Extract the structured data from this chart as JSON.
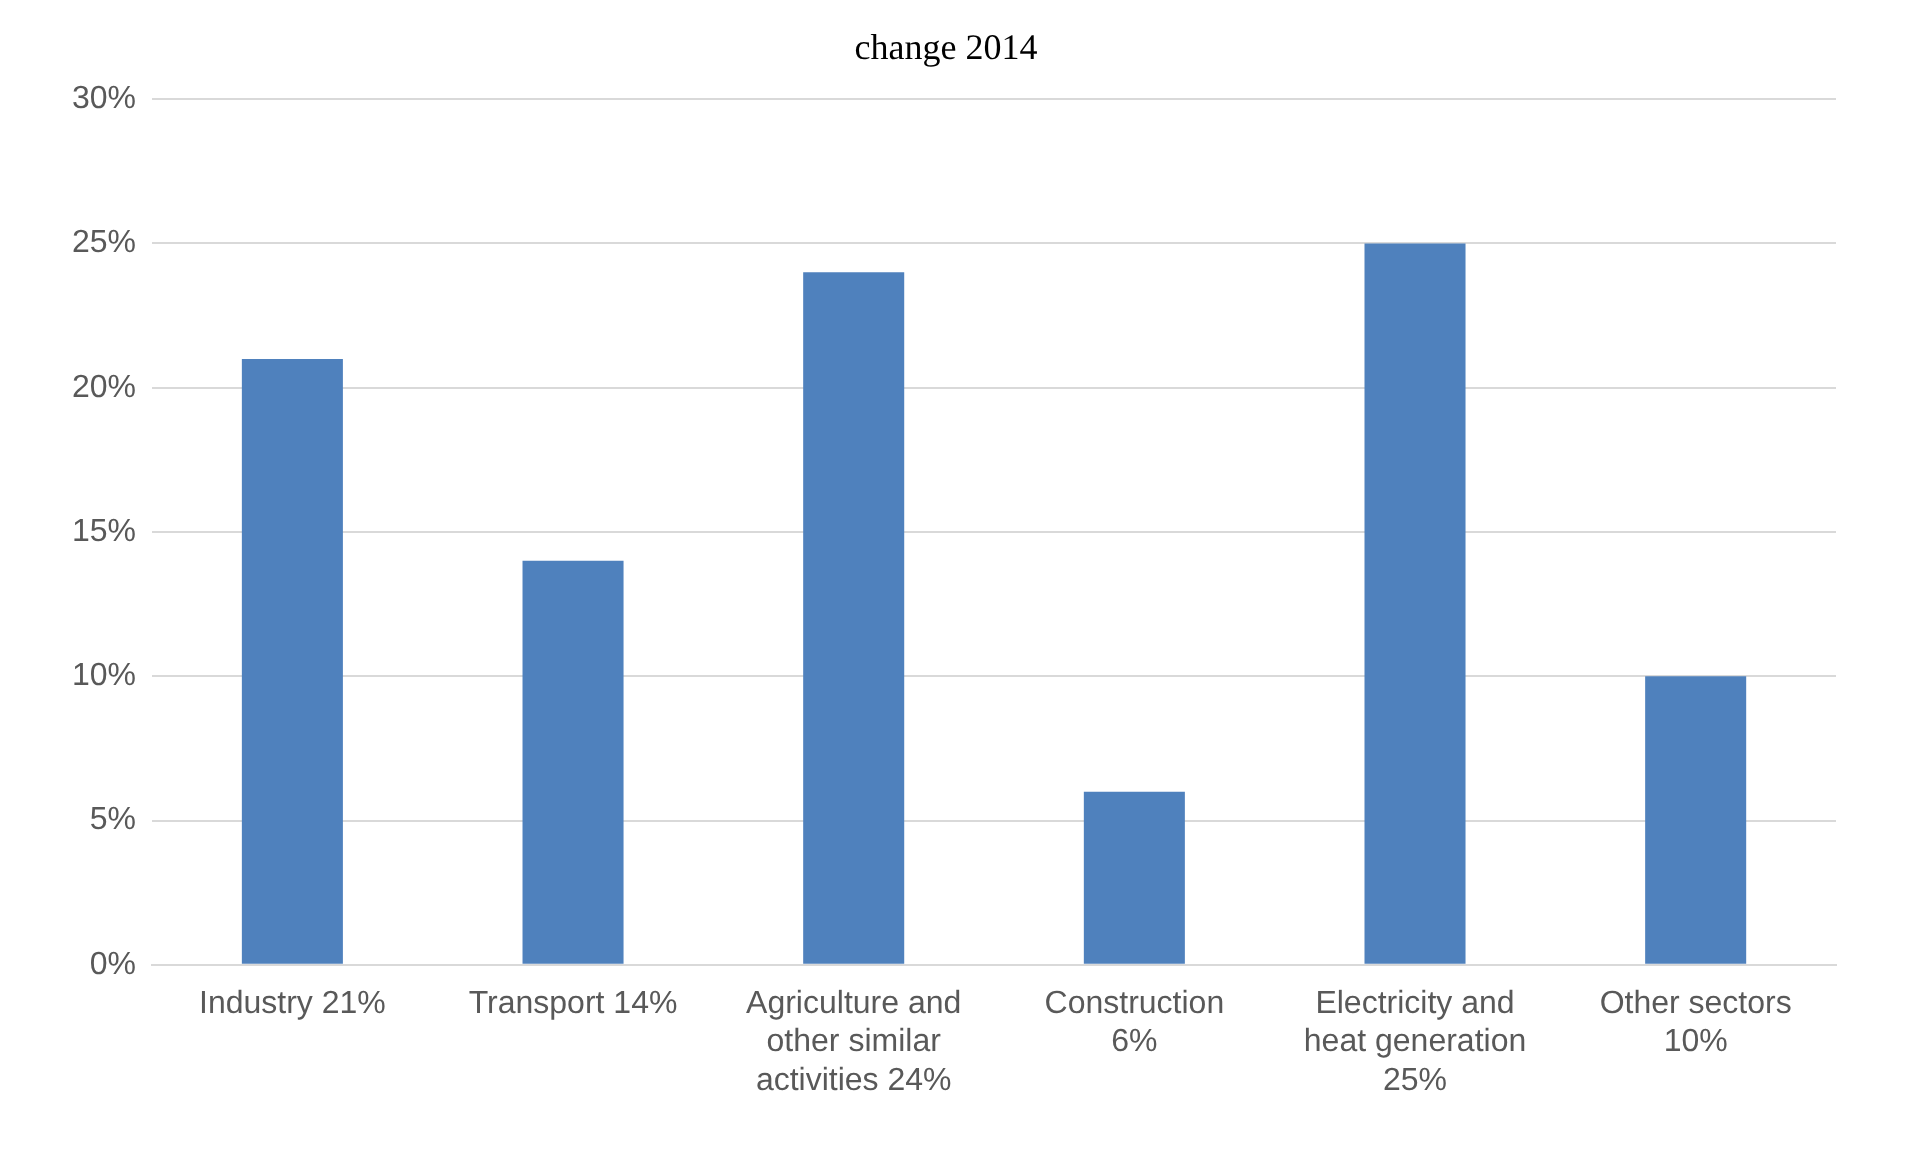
{
  "chart_data": {
    "type": "bar",
    "title": "change 2014",
    "categories": [
      "Industry 21%",
      "Transport 14%",
      "Agriculture and other similar activities 24%",
      "Construction 6%",
      "Electricity and heat generation 25%",
      "Other sectors 10%"
    ],
    "values": [
      21,
      14,
      24,
      6,
      25,
      10
    ],
    "color": "#4f81bd",
    "ylim": [
      0,
      30
    ],
    "yticks": [
      {
        "value": 0,
        "label": "0%"
      },
      {
        "value": 5,
        "label": "5%"
      },
      {
        "value": 10,
        "label": "10%"
      },
      {
        "value": 15,
        "label": "15%"
      },
      {
        "value": 20,
        "label": "20%"
      },
      {
        "value": 25,
        "label": "25%"
      },
      {
        "value": 30,
        "label": "30%"
      }
    ],
    "grid": "y",
    "legend": false
  }
}
